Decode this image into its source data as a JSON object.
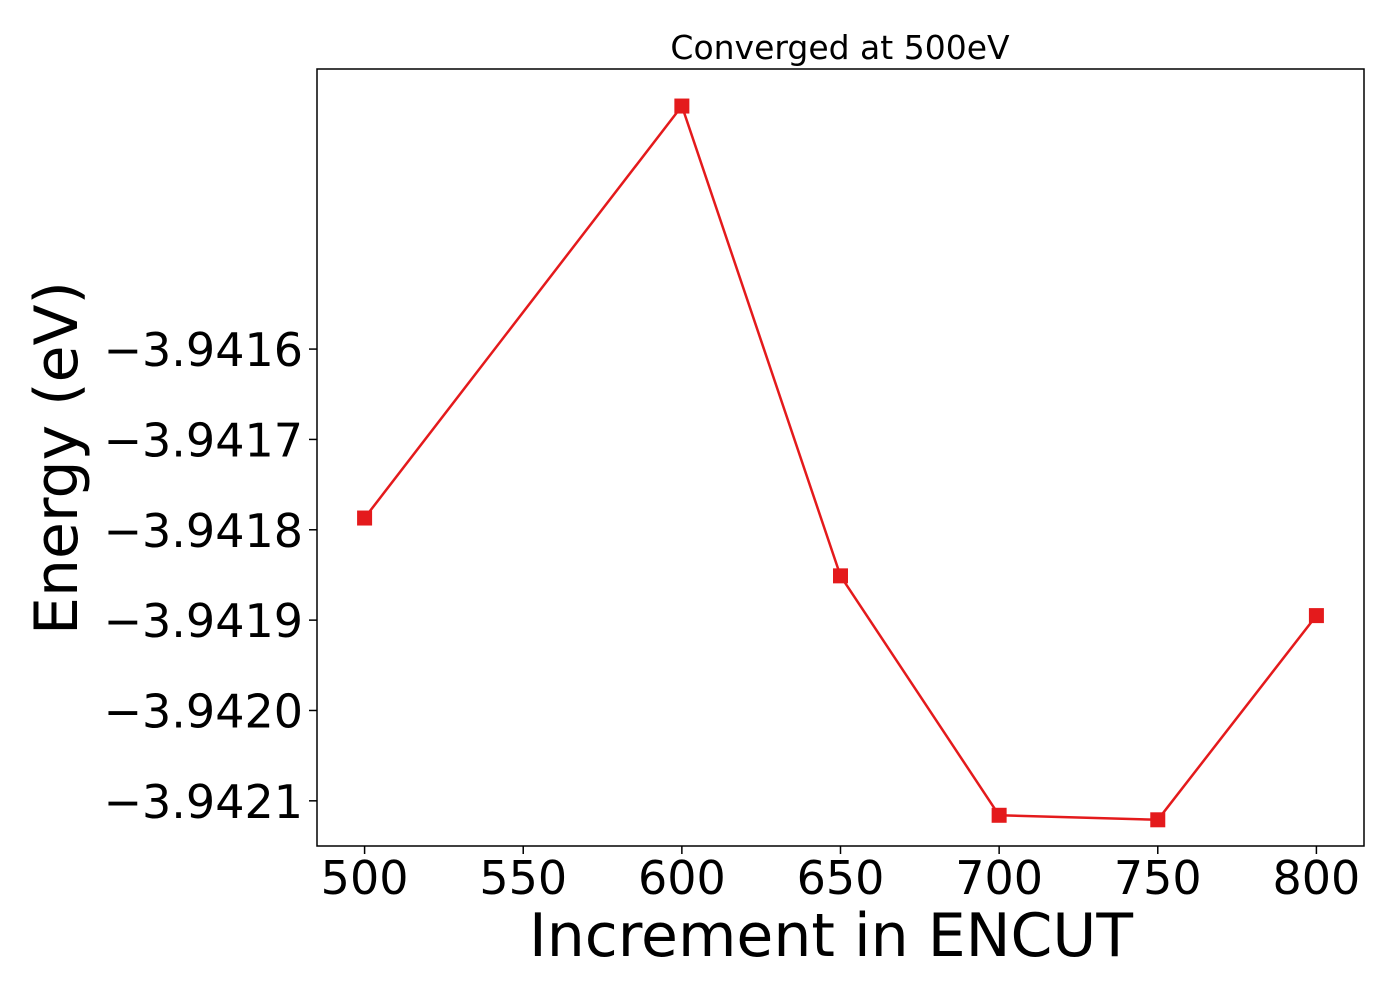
{
  "chart_data": {
    "type": "line",
    "title": "Converged at 500eV",
    "xlabel": "Increment in ENCUT",
    "ylabel": "Energy (eV)",
    "x": [
      500,
      600,
      650,
      700,
      750,
      800
    ],
    "series": [
      {
        "values": [
          -3.941787,
          -3.941331,
          -3.941851,
          -3.942116,
          -3.942121,
          -3.941895
        ],
        "color": "#e41a1c",
        "marker": "square"
      }
    ],
    "xticks": [
      500,
      550,
      600,
      650,
      700,
      750,
      800
    ],
    "xtick_labels": [
      "500",
      "550",
      "600",
      "650",
      "700",
      "750",
      "800"
    ],
    "yticks": [
      -3.9416,
      -3.9417,
      -3.9418,
      -3.9419,
      -3.942,
      -3.9421
    ],
    "ytick_labels": [
      "−3.9416",
      "−3.9417",
      "−3.9418",
      "−3.9419",
      "−3.9420",
      "−3.9421"
    ],
    "xlim": [
      485,
      815
    ],
    "ylim": [
      -3.94215,
      -3.94129
    ],
    "grid": false,
    "legend": "none"
  }
}
